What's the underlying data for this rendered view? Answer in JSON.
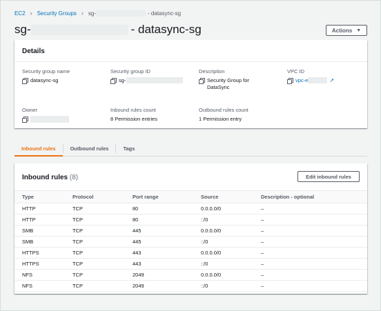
{
  "breadcrumb": {
    "items": [
      "EC2",
      "Security Groups"
    ],
    "current_prefix": "sg-",
    "current_suffix": "- datasync-sg"
  },
  "header": {
    "title_prefix": "sg-",
    "title_suffix": "- datasync-sg",
    "actions_label": "Actions"
  },
  "details": {
    "title": "Details",
    "group_name_label": "Security group name",
    "group_name_value": "datasync-sg",
    "group_id_label": "Security group ID",
    "group_id_value": "sg-",
    "description_label": "Description",
    "description_value": "Security Group for DataSync",
    "vpc_label": "VPC ID",
    "vpc_value": "vpc-e",
    "owner_label": "Owner",
    "inbound_count_label": "Inbound rules count",
    "inbound_count_value": "8 Permission entries",
    "outbound_count_label": "Outbound rules count",
    "outbound_count_value": "1 Permission entry"
  },
  "tabs": [
    "Inbound rules",
    "Outbound rules",
    "Tags"
  ],
  "rules": {
    "title": "Inbound rules",
    "count": "(8)",
    "edit_label": "Edit inbound rules",
    "columns": [
      "Type",
      "Protocol",
      "Port range",
      "Source",
      "Description - optional"
    ],
    "rows": [
      [
        "HTTP",
        "TCP",
        "80",
        "0.0.0.0/0",
        "–"
      ],
      [
        "HTTP",
        "TCP",
        "80",
        "::/0",
        "–"
      ],
      [
        "SMB",
        "TCP",
        "445",
        "0.0.0.0/0",
        "–"
      ],
      [
        "SMB",
        "TCP",
        "445",
        "::/0",
        "–"
      ],
      [
        "HTTPS",
        "TCP",
        "443",
        "0.0.0.0/0",
        "–"
      ],
      [
        "HTTPS",
        "TCP",
        "443",
        "::/0",
        "–"
      ],
      [
        "NFS",
        "TCP",
        "2049",
        "0.0.0.0/0",
        "–"
      ],
      [
        "NFS",
        "TCP",
        "2049",
        "::/0",
        "–"
      ]
    ]
  },
  "colors": {
    "link": "#0073bb",
    "active_tab": "#ec7211",
    "background": "#f2f3f3"
  }
}
